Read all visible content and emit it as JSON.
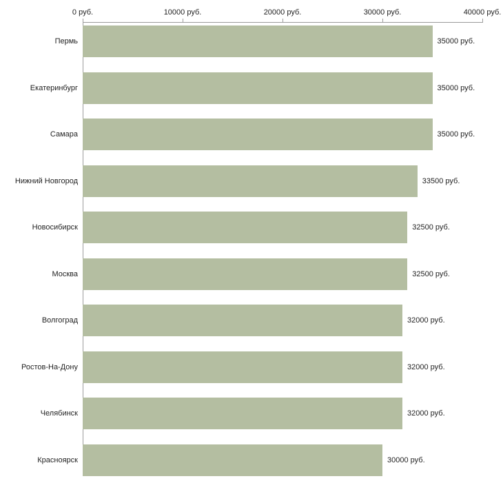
{
  "chart_data": {
    "type": "bar",
    "orientation": "horizontal",
    "title": "",
    "xlabel": "",
    "ylabel": "",
    "categories": [
      "Пермь",
      "Екатеринбург",
      "Самара",
      "Нижний Новгород",
      "Новосибирск",
      "Москва",
      "Волгоград",
      "Ростов-На-Дону",
      "Челябинск",
      "Красноярск"
    ],
    "values": [
      35000,
      35000,
      35000,
      33500,
      32500,
      32500,
      32000,
      32000,
      32000,
      30000
    ],
    "value_labels": [
      "35000 руб.",
      "35000 руб.",
      "35000 руб.",
      "33500 руб.",
      "32500 руб.",
      "32500 руб.",
      "32000 руб.",
      "32000 руб.",
      "32000 руб.",
      "30000 руб."
    ],
    "unit": "руб.",
    "xlim": [
      0,
      40000
    ],
    "x_ticks": [
      0,
      10000,
      20000,
      30000,
      40000
    ],
    "x_tick_labels": [
      "0 руб.",
      "10000 руб.",
      "20000 руб.",
      "30000 руб.",
      "40000 руб."
    ],
    "grid": false,
    "legend": false,
    "bar_color": "#b4bea1",
    "axis_color": "#9a9a9a",
    "text_color": "#222222",
    "background_color": "#ffffff"
  }
}
